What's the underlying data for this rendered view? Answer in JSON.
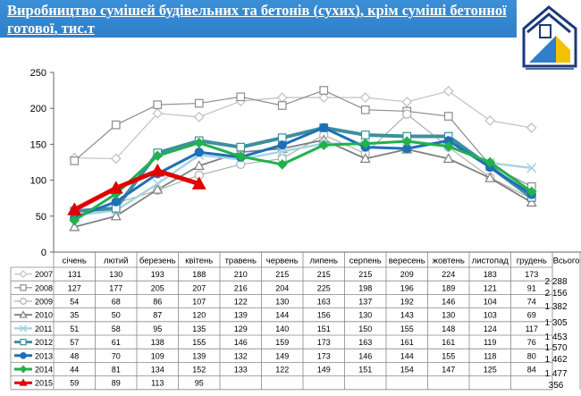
{
  "header": {
    "title": "Виробництво сумішей будівельних та бетонів (сухих), крім суміші бетонної готової, тис.т"
  },
  "colors": {
    "header_bg": "#2f7fca",
    "accent_red": "#e00000",
    "accent_green": "#22b14c"
  },
  "chart_data": {
    "type": "line",
    "ylim": [
      0,
      250
    ],
    "yticks": [
      0,
      50,
      100,
      150,
      200,
      250
    ],
    "grid": false,
    "categories": [
      "січень",
      "лютий",
      "березень",
      "квітень",
      "травень",
      "червень",
      "липень",
      "серпень",
      "вересень",
      "жовтень",
      "листопад",
      "грудень"
    ],
    "total_header": "Всього",
    "series": [
      {
        "name": "2007",
        "color": "#c0c0c0",
        "marker": "diamond-open",
        "width": 1.2,
        "values": [
          131,
          130,
          193,
          188,
          210,
          215,
          215,
          215,
          209,
          224,
          183,
          173
        ],
        "total": "2 288"
      },
      {
        "name": "2008",
        "color": "#8c8c8c",
        "marker": "square-open",
        "width": 1.2,
        "values": [
          127,
          177,
          205,
          207,
          216,
          204,
          225,
          198,
          196,
          189,
          121,
          91
        ],
        "total": "2 156"
      },
      {
        "name": "2009",
        "color": "#b0b0b0",
        "marker": "circle-open",
        "width": 1.2,
        "values": [
          54,
          68,
          86,
          107,
          122,
          130,
          163,
          137,
          192,
          146,
          104,
          74
        ],
        "total": "1 382"
      },
      {
        "name": "2010",
        "color": "#7f7f7f",
        "marker": "triangle-open",
        "width": 1.8,
        "values": [
          35,
          50,
          87,
          120,
          139,
          144,
          156,
          130,
          143,
          130,
          103,
          69
        ],
        "total": "1 305"
      },
      {
        "name": "2011",
        "color": "#a8d4e0",
        "marker": "x",
        "width": 2.5,
        "values": [
          51,
          58,
          95,
          135,
          129,
          140,
          151,
          150,
          155,
          148,
          124,
          117
        ],
        "total": "1 453"
      },
      {
        "name": "2012",
        "color": "#3e8fa0",
        "marker": "square-open",
        "width": 4,
        "values": [
          57,
          61,
          138,
          155,
          146,
          159,
          173,
          163,
          161,
          161,
          119,
          76
        ],
        "total": "1 570"
      },
      {
        "name": "2013",
        "color": "#1f6fb8",
        "marker": "circle",
        "width": 3,
        "values": [
          48,
          70,
          109,
          139,
          132,
          149,
          173,
          146,
          144,
          155,
          118,
          80
        ],
        "total": "1 462"
      },
      {
        "name": "2014",
        "color": "#22b14c",
        "marker": "diamond",
        "width": 3,
        "values": [
          44,
          81,
          134,
          152,
          133,
          122,
          149,
          151,
          154,
          147,
          125,
          84
        ],
        "total": "1 477"
      },
      {
        "name": "2015",
        "color": "#e00000",
        "marker": "triangle",
        "width": 5,
        "values": [
          59,
          89,
          113,
          95,
          null,
          null,
          null,
          null,
          null,
          null,
          null,
          null
        ],
        "total": "356"
      }
    ]
  }
}
